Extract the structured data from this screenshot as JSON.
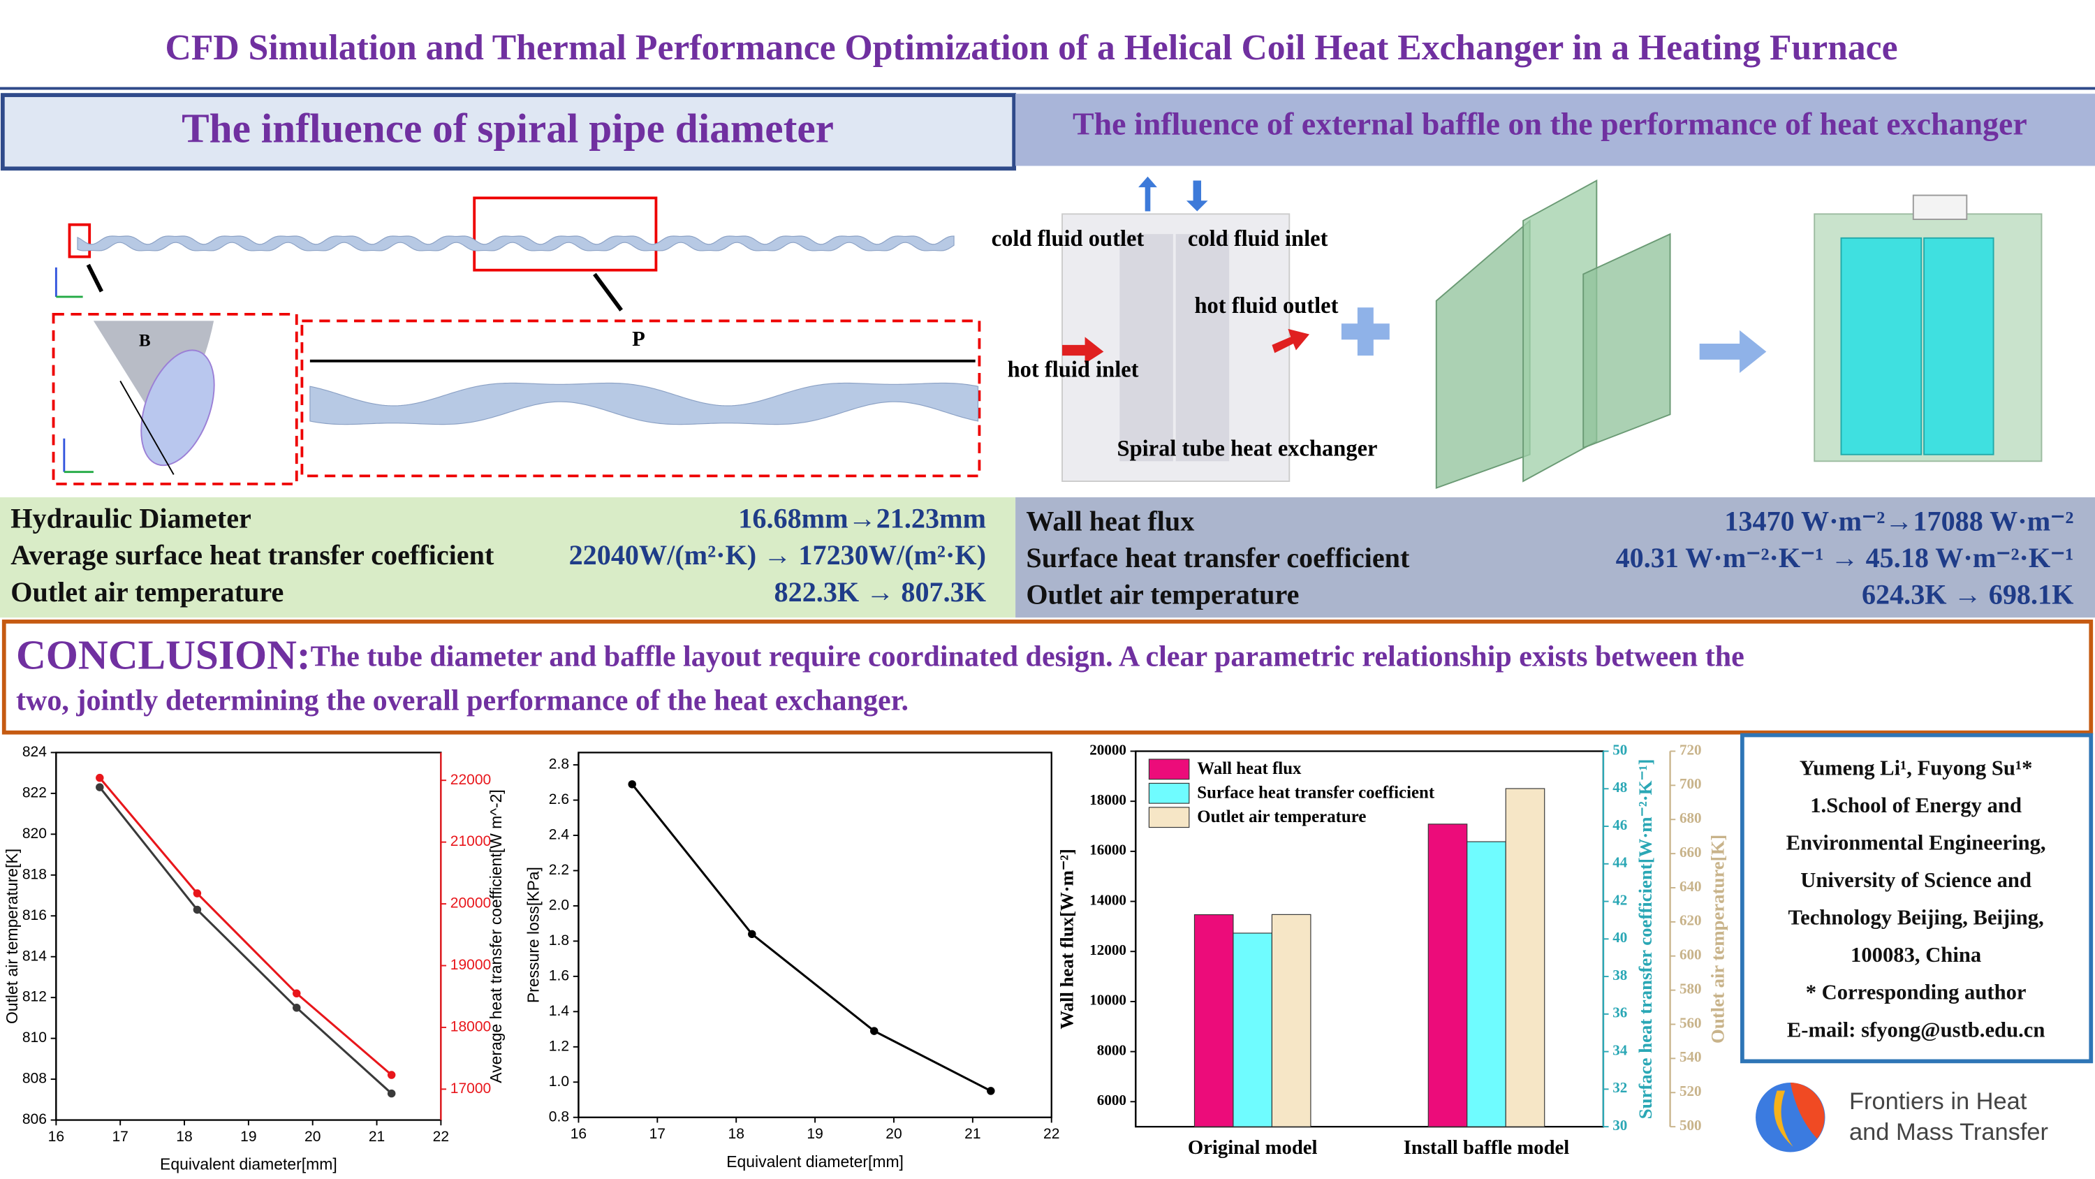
{
  "title": "CFD Simulation and Thermal Performance Optimization of a Helical Coil Heat Exchanger in a Heating Furnace",
  "left_panel": {
    "heading": "The influence of spiral pipe diameter",
    "diagram_labels": [
      "P",
      "B"
    ],
    "results": [
      {
        "label": "Hydraulic Diameter",
        "value": "16.68mm→21.23mm"
      },
      {
        "label": "Average surface heat transfer coefficient",
        "value": "22040W/(m²·K) → 17230W/(m²·K)"
      },
      {
        "label": "Outlet air temperature",
        "value": "822.3K → 807.3K"
      }
    ]
  },
  "right_panel": {
    "heading": "The influence of external baffle on the performance of heat exchanger",
    "diagram_labels": [
      "cold fluid outlet",
      "cold fluid inlet",
      "hot fluid outlet",
      "hot fluid inlet",
      "Spiral tube heat exchanger"
    ],
    "results": [
      {
        "label": "Wall heat flux",
        "value": "13470 W·m⁻²→17088 W·m⁻²"
      },
      {
        "label": "Surface heat transfer coefficient",
        "value": "40.31 W·m⁻²·K⁻¹ → 45.18 W·m⁻²·K⁻¹"
      },
      {
        "label": "Outlet air temperature",
        "value": "624.3K → 698.1K"
      }
    ]
  },
  "conclusion": {
    "label": "CONCLUSION:",
    "lines": [
      "The tube diameter and baffle layout require coordinated design. A clear parametric relationship exists between the",
      "two, jointly determining the overall performance of the heat exchanger."
    ]
  },
  "authors": {
    "lines": [
      "Yumeng Li¹, Fuyong Su¹*",
      "1.School of Energy and",
      "Environmental Engineering,",
      "University of Science and",
      "Technology Beijing, Beijing,",
      "100083, China",
      "* Corresponding author",
      "E-mail: sfyong@ustb.edu.cn"
    ]
  },
  "journal": {
    "lines": [
      "Frontiers in Heat",
      "and Mass Transfer"
    ]
  },
  "chart_data": [
    {
      "type": "line",
      "x": [
        16.68,
        18.2,
        19.75,
        21.23
      ],
      "xlabel": "Equivalent diameter[mm]",
      "ylabel": "Outlet air temperature[K]",
      "y2label": "Average heat transfer coefficient[W m^-2]",
      "xlim": [
        16,
        22
      ],
      "xticks": [
        16,
        17,
        18,
        19,
        20,
        21,
        22
      ],
      "ylim": [
        806,
        824
      ],
      "yticks": [
        806,
        808,
        810,
        812,
        814,
        816,
        818,
        820,
        822,
        824
      ],
      "y2lim": [
        16500,
        22450
      ],
      "y2ticks": [
        17000,
        18000,
        19000,
        20000,
        21000,
        22000
      ],
      "y2color": "#e8161b",
      "series": [
        {
          "color": "#3a3a3a",
          "values": [
            822.3,
            816.3,
            811.5,
            807.3
          ]
        },
        {
          "color": "#e8161b",
          "axis": "y2",
          "values": [
            22040,
            20170,
            18550,
            17230
          ]
        }
      ]
    },
    {
      "type": "line",
      "x": [
        16.68,
        18.2,
        19.75,
        21.23
      ],
      "xlabel": "Equivalent diameter[mm]",
      "ylabel": "Pressure loss[KPa]",
      "xlim": [
        16,
        22
      ],
      "xticks": [
        16,
        17,
        18,
        19,
        20,
        21,
        22
      ],
      "ylim": [
        0.8,
        2.87
      ],
      "yticks": [
        0.8,
        {
          "value": 1,
          "label": "1.0"
        },
        1.2,
        1.4,
        1.6,
        1.8,
        {
          "value": 2,
          "label": "2.0"
        },
        2.2,
        2.4,
        2.6,
        2.8
      ],
      "series": [
        {
          "color": "#000000",
          "values": [
            2.69,
            1.84,
            1.29,
            0.95
          ]
        }
      ]
    },
    {
      "type": "bar",
      "categories": [
        "Original model",
        "Install baffle model"
      ],
      "ylabel": "Wall heat flux[W·m⁻²]",
      "y2label": "Surface heat transfer coefficient[W·m⁻²·K⁻¹]",
      "y3label": "Outlet air temperature[K]",
      "ylim": [
        5000,
        20000
      ],
      "yticks": [
        6000,
        8000,
        10000,
        12000,
        14000,
        16000,
        18000,
        20000
      ],
      "y2lim": [
        30,
        50
      ],
      "y2ticks": [
        30,
        32,
        34,
        36,
        38,
        40,
        42,
        44,
        46,
        48,
        50
      ],
      "y2color": "#2aa7b5",
      "y3lim": [
        500,
        720
      ],
      "y3ticks": [
        500,
        520,
        540,
        560,
        580,
        600,
        620,
        640,
        660,
        680,
        700,
        720
      ],
      "y3color": "#c8b38a",
      "legend": "upper left",
      "series": [
        {
          "name": "Wall heat flux",
          "color": "#ec0c7a",
          "values": [
            13470,
            17088
          ]
        },
        {
          "name": "Surface heat transfer coefficient",
          "color": "#6ffcff",
          "axis": "y2",
          "values": [
            40.31,
            45.18
          ]
        },
        {
          "name": "Outlet air temperature",
          "color": "#f6e6c6",
          "axis": "y3",
          "values": [
            624.3,
            698.1
          ]
        }
      ]
    }
  ]
}
